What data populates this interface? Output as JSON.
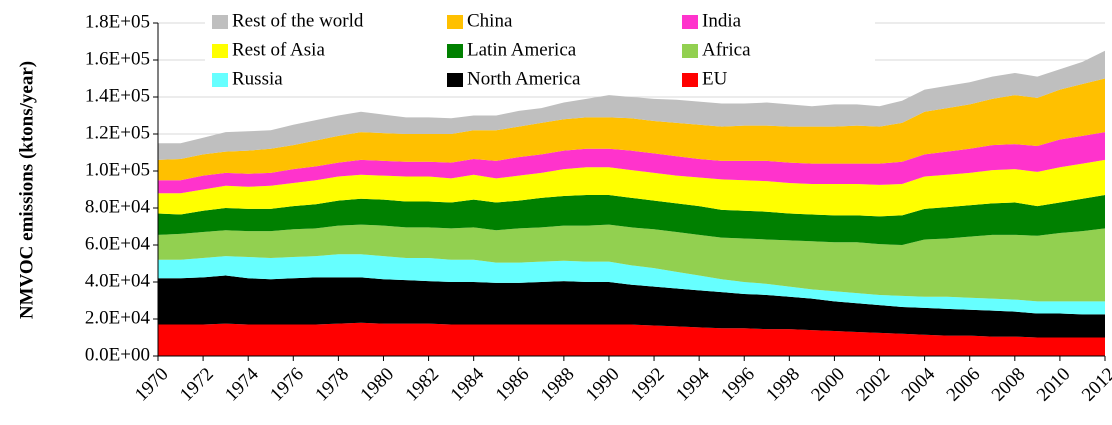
{
  "chart_data": {
    "type": "stacked_area",
    "y_label": "NMVOC emissions (ktons/year)",
    "x": [
      1970,
      1971,
      1972,
      1973,
      1974,
      1975,
      1976,
      1977,
      1978,
      1979,
      1980,
      1981,
      1982,
      1983,
      1984,
      1985,
      1986,
      1987,
      1988,
      1989,
      1990,
      1991,
      1992,
      1993,
      1994,
      1995,
      1996,
      1997,
      1998,
      1999,
      2000,
      2001,
      2002,
      2003,
      2004,
      2005,
      2006,
      2007,
      2008,
      2009,
      2010,
      2011,
      2012
    ],
    "xlim": [
      1970,
      2012
    ],
    "xticks": [
      1970,
      1972,
      1974,
      1976,
      1978,
      1980,
      1982,
      1984,
      1986,
      1988,
      1990,
      1992,
      1994,
      1996,
      1998,
      2000,
      2002,
      2004,
      2006,
      2008,
      2010,
      2012
    ],
    "ylim": [
      0,
      180000
    ],
    "yticks": [
      {
        "value": 0,
        "label": "0.0E+00"
      },
      {
        "value": 20000,
        "label": "2.0E+04"
      },
      {
        "value": 40000,
        "label": "4.0E+04"
      },
      {
        "value": 60000,
        "label": "6.0E+04"
      },
      {
        "value": 80000,
        "label": "8.0E+04"
      },
      {
        "value": 100000,
        "label": "1.0E+05"
      },
      {
        "value": 120000,
        "label": "1.2E+05"
      },
      {
        "value": 140000,
        "label": "1.4E+05"
      },
      {
        "value": 160000,
        "label": "1.6E+05"
      },
      {
        "value": 180000,
        "label": "1.8E+05"
      }
    ],
    "grid": true,
    "series": [
      {
        "name": "EU",
        "color": "#ff0000",
        "values": [
          17000,
          17000,
          17000,
          17500,
          17000,
          17000,
          17000,
          17000,
          17500,
          18000,
          17500,
          17500,
          17500,
          17000,
          17000,
          17000,
          17000,
          17000,
          17000,
          17000,
          17000,
          17000,
          16500,
          16000,
          15500,
          15000,
          15000,
          14500,
          14500,
          14000,
          13500,
          13000,
          12500,
          12000,
          11500,
          11000,
          11000,
          10500,
          10500,
          10000,
          10000,
          10000,
          10000
        ]
      },
      {
        "name": "North America",
        "color": "#000000",
        "values": [
          25000,
          25000,
          25500,
          26000,
          25000,
          24500,
          25000,
          25500,
          25000,
          24500,
          24000,
          23500,
          23000,
          23000,
          23000,
          22500,
          22500,
          23000,
          23500,
          23000,
          23000,
          21500,
          21000,
          20500,
          20000,
          19500,
          18500,
          18500,
          17500,
          17000,
          16000,
          15500,
          15000,
          14500,
          14500,
          14500,
          14000,
          14000,
          13500,
          13000,
          13000,
          12500,
          12500
        ]
      },
      {
        "name": "Russia",
        "color": "#66ffff",
        "values": [
          10000,
          10000,
          10500,
          10500,
          11500,
          11500,
          11500,
          11500,
          12500,
          12500,
          12500,
          12000,
          12500,
          12000,
          12000,
          11000,
          11000,
          11000,
          11000,
          11000,
          11000,
          10500,
          10000,
          9000,
          8000,
          7000,
          6500,
          6000,
          5500,
          5000,
          5500,
          5500,
          5500,
          6000,
          6000,
          6500,
          6500,
          6500,
          6500,
          6500,
          6500,
          7000,
          7000
        ]
      },
      {
        "name": "Africa",
        "color": "#92d050",
        "values": [
          13500,
          14000,
          14000,
          14000,
          14000,
          14500,
          15000,
          15000,
          15500,
          16000,
          16500,
          16500,
          16500,
          17000,
          17500,
          17500,
          18500,
          18500,
          19000,
          19500,
          20000,
          20500,
          21000,
          21500,
          22000,
          22500,
          23500,
          24000,
          25000,
          26000,
          26500,
          27500,
          27500,
          27500,
          31000,
          31500,
          33000,
          34500,
          35000,
          35500,
          37000,
          38000,
          39500
        ]
      },
      {
        "name": "Latin America",
        "color": "#008000",
        "values": [
          11500,
          10500,
          11500,
          12000,
          12000,
          12000,
          12500,
          13000,
          13500,
          14000,
          14000,
          14000,
          14000,
          14000,
          15000,
          15000,
          15000,
          16000,
          16000,
          16500,
          16000,
          16000,
          15500,
          15500,
          15500,
          15000,
          15000,
          15000,
          14500,
          14500,
          14500,
          14500,
          15000,
          16000,
          16500,
          17000,
          17000,
          17000,
          17500,
          16000,
          16500,
          17500,
          18000
        ]
      },
      {
        "name": "Rest of Asia",
        "color": "#ffff00",
        "values": [
          11000,
          11500,
          11500,
          12000,
          12000,
          12500,
          12500,
          13000,
          13000,
          13000,
          13000,
          13500,
          13500,
          13000,
          13500,
          13000,
          13500,
          13500,
          14500,
          15000,
          15000,
          15000,
          15000,
          15000,
          15500,
          16500,
          16500,
          16500,
          16500,
          16500,
          17000,
          17000,
          17000,
          17000,
          17500,
          17500,
          17500,
          18000,
          18000,
          18500,
          19000,
          19000,
          19000
        ]
      },
      {
        "name": "India",
        "color": "#ff33cc",
        "values": [
          7000,
          7000,
          7500,
          7000,
          7000,
          7000,
          7500,
          7500,
          7500,
          8000,
          8000,
          8000,
          8000,
          8500,
          8500,
          9500,
          10000,
          10000,
          10000,
          10000,
          10000,
          10500,
          10500,
          10500,
          10000,
          10000,
          10500,
          11000,
          11000,
          11000,
          11000,
          11000,
          11500,
          12000,
          12000,
          12500,
          13000,
          13500,
          13500,
          14000,
          15000,
          15000,
          15000
        ]
      },
      {
        "name": "China",
        "color": "#ffc000",
        "values": [
          11000,
          11500,
          11500,
          11500,
          12500,
          13000,
          13000,
          14000,
          14500,
          15000,
          15000,
          15000,
          15000,
          15500,
          15500,
          16500,
          16500,
          17000,
          17000,
          17000,
          17000,
          17500,
          17500,
          18000,
          18500,
          18500,
          19000,
          19000,
          19500,
          20000,
          20000,
          20500,
          20000,
          21000,
          23000,
          23500,
          24000,
          25000,
          26500,
          26000,
          27000,
          28000,
          29000
        ]
      },
      {
        "name": "Rest of the world",
        "color": "#bfbfbf",
        "values": [
          9000,
          8500,
          9000,
          10500,
          10500,
          10000,
          11000,
          11000,
          11000,
          11000,
          10000,
          9000,
          9000,
          8500,
          8000,
          8000,
          8500,
          8000,
          9000,
          10000,
          12000,
          11500,
          12000,
          12500,
          12500,
          12500,
          12000,
          12500,
          12000,
          11000,
          12000,
          11500,
          11000,
          12000,
          12000,
          12000,
          12000,
          12000,
          12000,
          11500,
          11000,
          12000,
          15000
        ]
      }
    ]
  }
}
